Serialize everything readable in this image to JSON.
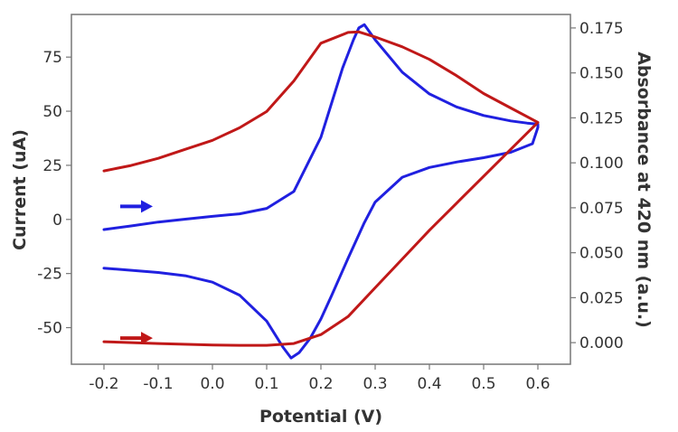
{
  "chart_data": {
    "type": "line",
    "xlabel": "Potential (V)",
    "ylabel_left": "Current (uA)",
    "ylabel_right": "Absorbance at 420 nm (a.u.)",
    "xlim": [
      -0.26,
      0.66
    ],
    "ylim_left": [
      -66.9,
      94.7
    ],
    "ylim_right": [
      -0.012,
      0.1825
    ],
    "x_ticks": [
      "-0.2",
      "-0.1",
      "0.0",
      "0.1",
      "0.2",
      "0.3",
      "0.4",
      "0.5",
      "0.6"
    ],
    "x_tick_values": [
      -0.2,
      -0.1,
      0.0,
      0.1,
      0.2,
      0.3,
      0.4,
      0.5,
      0.6
    ],
    "y_ticks_left": [
      "75",
      "50",
      "25",
      "0",
      "-25",
      "-50"
    ],
    "y_tick_values_left": [
      75,
      50,
      25,
      0,
      -25,
      -50
    ],
    "y_ticks_right": [
      "0.175",
      "0.150",
      "0.125",
      "0.100",
      "0.075",
      "0.050",
      "0.025",
      "0.000"
    ],
    "y_tick_values_right": [
      0.175,
      0.15,
      0.125,
      0.1,
      0.075,
      0.05,
      0.025,
      0.0
    ],
    "grid": false,
    "series": [
      {
        "color": "#2020e0",
        "axis": "left",
        "x": [
          -0.2,
          -0.15,
          -0.1,
          -0.05,
          0.0,
          0.05,
          0.1,
          0.15,
          0.2,
          0.22,
          0.24,
          0.26,
          0.27,
          0.28,
          0.3,
          0.35,
          0.4,
          0.45,
          0.5,
          0.55,
          0.58,
          0.6,
          0.6,
          0.59,
          0.55,
          0.5,
          0.45,
          0.4,
          0.35,
          0.3,
          0.28,
          0.25,
          0.22,
          0.2,
          0.18,
          0.16,
          0.145,
          0.13,
          0.1,
          0.05,
          0.0,
          -0.05,
          -0.1,
          -0.2
        ],
        "y": [
          -4.7,
          -3.0,
          -1.2,
          0.1,
          1.4,
          2.6,
          5.1,
          12.9,
          38.0,
          54.0,
          70.0,
          83.0,
          88.5,
          90.0,
          83.0,
          68.0,
          58.0,
          52.0,
          48.0,
          45.5,
          44.5,
          44.0,
          42.5,
          35.0,
          31.0,
          28.5,
          26.5,
          24.0,
          19.5,
          8.0,
          -1.5,
          -18.0,
          -35.0,
          -46.0,
          -55.0,
          -61.5,
          -64.0,
          -59.0,
          -47.0,
          -35.0,
          -29.0,
          -26.0,
          -24.5,
          -22.5
        ]
      },
      {
        "color": "#c01818",
        "axis": "right",
        "x": [
          -0.2,
          -0.15,
          -0.1,
          -0.05,
          0.0,
          0.05,
          0.1,
          0.15,
          0.2,
          0.25,
          0.27,
          0.3,
          0.35,
          0.4,
          0.45,
          0.5,
          0.55,
          0.6,
          0.55,
          0.5,
          0.45,
          0.4,
          0.35,
          0.3,
          0.25,
          0.2,
          0.15,
          0.1,
          0.05,
          0.0,
          -0.1,
          -0.2
        ],
        "y": [
          0.0955,
          0.0985,
          0.1025,
          0.1075,
          0.1125,
          0.1195,
          0.1285,
          0.1455,
          0.1665,
          0.1725,
          0.1728,
          0.17,
          0.1645,
          0.1575,
          0.1485,
          0.1385,
          0.1305,
          0.1225,
          0.1075,
          0.0925,
          0.0775,
          0.0625,
          0.0465,
          0.0305,
          0.0145,
          0.0045,
          -0.0005,
          -0.0015,
          -0.0015,
          -0.0013,
          -0.0005,
          0.0005
        ]
      }
    ],
    "arrows": [
      {
        "color": "#2020e0",
        "axis": "left",
        "x": [
          -0.17,
          -0.11
        ],
        "y": [
          6.0,
          6.0
        ]
      },
      {
        "color": "#c01818",
        "axis": "right",
        "x": [
          -0.17,
          -0.11
        ],
        "y": [
          0.0025,
          0.0025
        ]
      }
    ]
  }
}
